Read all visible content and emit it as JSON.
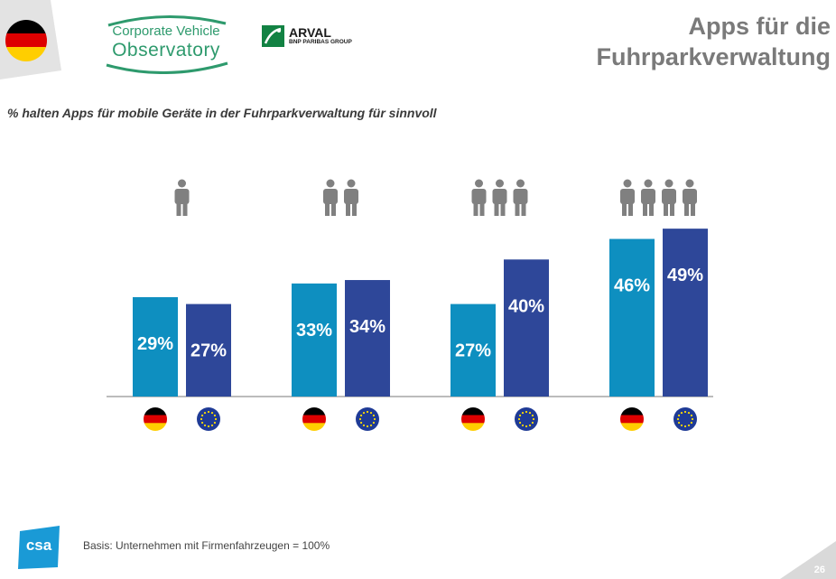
{
  "header": {
    "title_line1": "Apps für die",
    "title_line2": "Fuhrparkverwaltung",
    "cvo_logo_line1": "Corporate Vehicle",
    "cvo_logo_line2": "Observatory",
    "arval_name": "ARVAL",
    "arval_sub": "BNP PARIBAS GROUP"
  },
  "subtitle": "% halten Apps für mobile Geräte in der Fuhrparkverwaltung für sinnvoll",
  "footer": {
    "basis": "Basis: Unternehmen mit Firmenfahrzeugen = 100%",
    "page_number": "26",
    "csa_logo_text": "csa"
  },
  "colors": {
    "germany": "#0e8fc0",
    "europe": "#2e4799",
    "title": "#7a7a7a",
    "person_icon": "#808080",
    "axis": "#a6a6a6"
  },
  "chart_data": {
    "type": "bar",
    "categories": [
      "1 person",
      "2 persons",
      "3 persons",
      "4 persons"
    ],
    "category_icon": "person-icon",
    "category_icon_counts": [
      1,
      2,
      3,
      4
    ],
    "series": [
      {
        "key": "germany",
        "marker_icon": "flag-germany-icon",
        "values": [
          29,
          33,
          27,
          46
        ],
        "labels": [
          "29%",
          "33%",
          "27%",
          "46%"
        ]
      },
      {
        "key": "europe",
        "marker_icon": "flag-eu-icon",
        "values": [
          27,
          34,
          40,
          49
        ],
        "labels": [
          "27%",
          "34%",
          "40%",
          "49%"
        ]
      }
    ],
    "ylim": [
      0,
      60
    ],
    "grid": false,
    "legend": "none"
  }
}
